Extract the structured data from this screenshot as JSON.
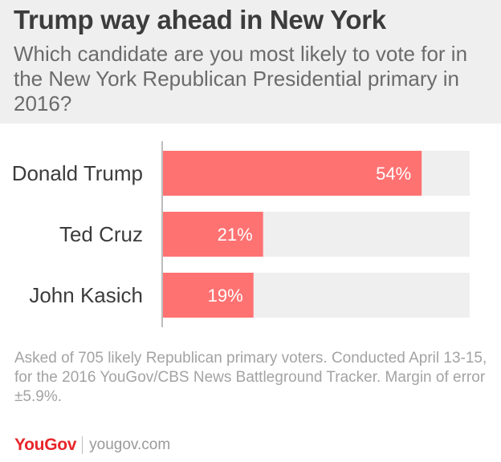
{
  "header": {
    "title": "Trump way ahead in New York",
    "subtitle": "Which candidate are you most likely to vote for in the New York Republican Presidential primary in 2016?"
  },
  "footnote": "Asked of 705 likely Republican primary voters. Conducted April 13-15, for the 2016 YouGov/CBS News Battleground Tracker. Margin of error ±5.9%.",
  "brand": {
    "logo": "YouGov",
    "site": "yougov.com"
  },
  "colors": {
    "bar": "#ff7272",
    "track": "#efefef",
    "axis": "#bdbdbd",
    "label": "#3c3c3c",
    "value_label": "#ffffff"
  },
  "chart_data": {
    "type": "bar",
    "orientation": "horizontal",
    "categories": [
      "Donald Trump",
      "Ted Cruz",
      "John Kasich"
    ],
    "values": [
      54,
      21,
      19
    ],
    "value_labels": [
      "54%",
      "21%",
      "19%"
    ],
    "xlim": [
      0,
      64
    ],
    "grid": false,
    "legend": "none"
  }
}
